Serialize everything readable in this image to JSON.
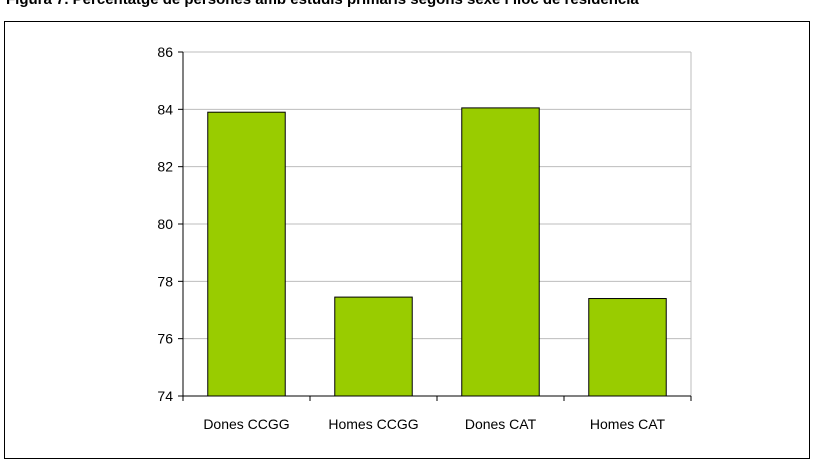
{
  "header": {
    "cut_text": "Figura 7. Percentatge de persones amb estudis primaris segons sexe i lloc de residència"
  },
  "chart_data": {
    "type": "bar",
    "title": "",
    "xlabel": "",
    "ylabel": "",
    "categories": [
      "Dones CCGG",
      "Homes CCGG",
      "Dones CAT",
      "Homes CAT"
    ],
    "values": [
      83.9,
      77.45,
      84.05,
      77.4
    ],
    "ylim": [
      74,
      86
    ],
    "yticks": [
      74,
      76,
      78,
      80,
      82,
      84,
      86
    ],
    "grid": true,
    "legend": "none",
    "bar_color": "#99CC00",
    "bar_border_color": "#000000"
  }
}
